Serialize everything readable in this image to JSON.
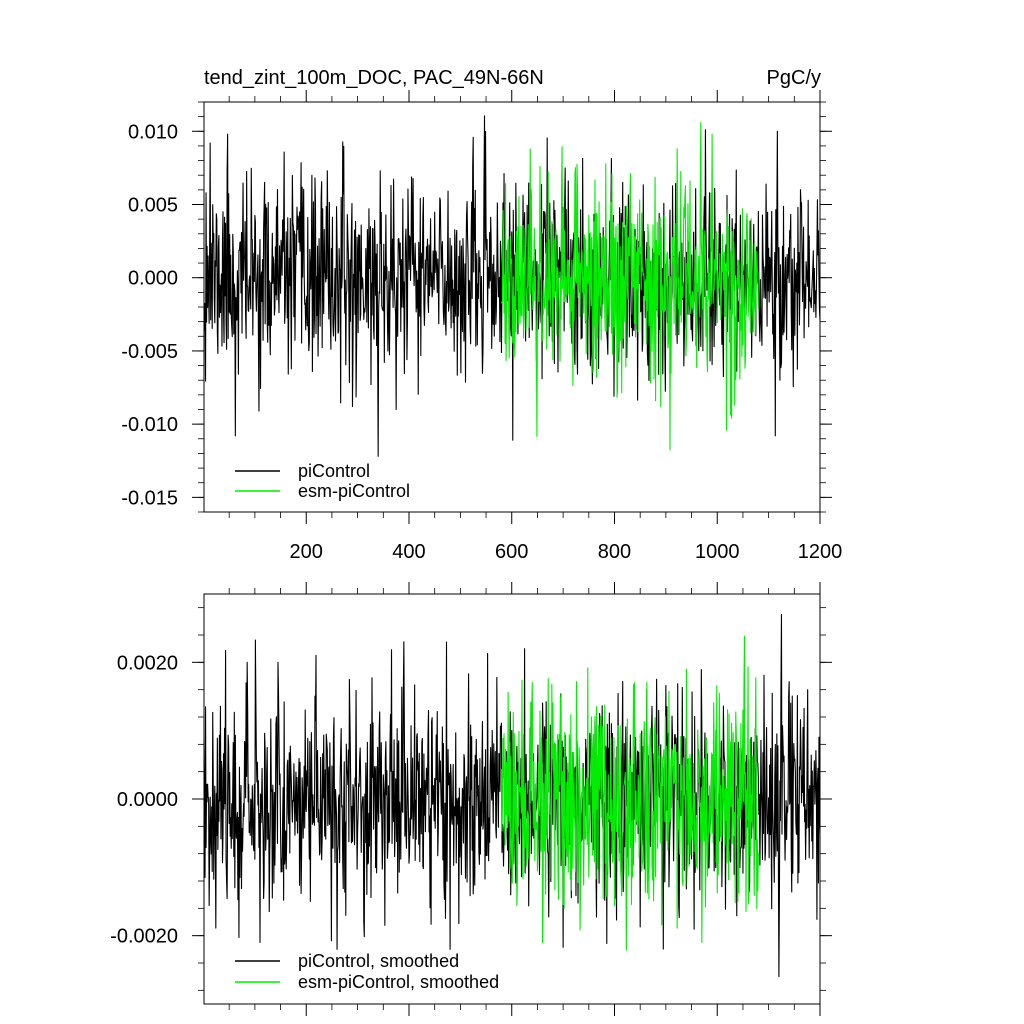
{
  "chart_data": [
    {
      "type": "line",
      "title_left": "tend_zint_100m_DOC, PAC_49N-66N",
      "title_right": "PgC/y",
      "xlim": [
        1,
        1200
      ],
      "ylim": [
        -0.016,
        0.012
      ],
      "x_ticks": [
        200,
        400,
        600,
        800,
        1000,
        1200
      ],
      "x_tick_labels": [
        "200",
        "400",
        "600",
        "800",
        "1000",
        "1200"
      ],
      "y_ticks": [
        0.01,
        0.005,
        0.0,
        -0.005,
        -0.01,
        -0.015
      ],
      "y_tick_labels": [
        "0.010",
        "0.005",
        "0.000",
        "-0.005",
        "-0.010",
        "-0.015"
      ],
      "legend_placement": "bottom-left",
      "series": [
        {
          "name": "piControl",
          "color": "#000000",
          "x_start": 1,
          "x_end": 1200,
          "sigma": 0.0032,
          "spikes": [
            [
              5,
              0.0058
            ],
            [
              13,
              0.0092
            ],
            [
              47,
              0.0098
            ],
            [
              62,
              -0.0108
            ],
            [
              290,
              -0.0088
            ],
            [
              340,
              -0.0122
            ],
            [
              375,
              -0.009
            ],
            [
              1113,
              -0.0108
            ],
            [
              1117,
              0.01
            ],
            [
              985,
              0.0058
            ]
          ]
        },
        {
          "name": "esm-piControl",
          "color": "#00ee00",
          "x_start": 580,
          "x_end": 1080,
          "sigma": 0.0036,
          "spikes": [
            [
              968,
              0.0106
            ],
            [
              990,
              0.0098
            ],
            [
              1028,
              -0.0096
            ],
            [
              880,
              -0.0084
            ],
            [
              922,
              0.0088
            ],
            [
              655,
              0.0076
            ]
          ]
        }
      ]
    },
    {
      "type": "line",
      "xlim": [
        1,
        1200
      ],
      "ylim": [
        -0.003,
        0.003
      ],
      "y_ticks": [
        0.002,
        0.0,
        -0.002
      ],
      "y_tick_labels": [
        "0.0020",
        "0.0000",
        "-0.0020"
      ],
      "legend_placement": "bottom-left",
      "series": [
        {
          "name": "piControl, smoothed",
          "color": "#000000",
          "x_start": 1,
          "x_end": 1200,
          "sigma": 0.00075,
          "spikes": [
            [
              85,
              0.002
            ],
            [
              110,
              -0.0021
            ],
            [
              145,
              0.002
            ],
            [
              260,
              -0.0022
            ],
            [
              390,
              0.0023
            ],
            [
              480,
              -0.0022
            ],
            [
              625,
              0.0022
            ],
            [
              1125,
              0.0027
            ],
            [
              1120,
              -0.0026
            ]
          ]
        },
        {
          "name": "esm-piControl, smoothed",
          "color": "#00ee00",
          "x_start": 580,
          "x_end": 1080,
          "sigma": 0.0008,
          "spikes": [
            [
              940,
              0.0019
            ],
            [
              970,
              -0.0021
            ],
            [
              660,
              -0.0021
            ],
            [
              1050,
              0.0013
            ]
          ]
        }
      ]
    }
  ]
}
